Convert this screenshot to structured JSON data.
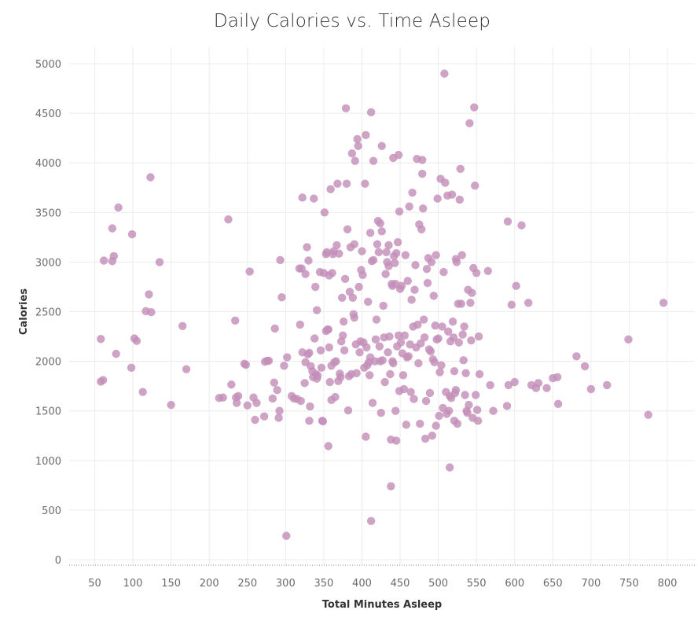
{
  "chart_data": {
    "type": "scatter",
    "title": "Daily Calories vs. Time Asleep",
    "xlabel": "Total Minutes Asleep",
    "ylabel": "Calories",
    "xlim": [
      20,
      860
    ],
    "ylim": [
      -60,
      5200
    ],
    "x_ticks": [
      50,
      100,
      150,
      200,
      250,
      300,
      350,
      400,
      450,
      500,
      550,
      600,
      650,
      700,
      750,
      800
    ],
    "y_ticks": [
      0,
      500,
      1000,
      1500,
      2000,
      2500,
      3000,
      3500,
      4000,
      4500,
      5000
    ],
    "grid": true,
    "legend": "none",
    "marker_color": "#c38fb8",
    "points": [
      [
        58,
        2225
      ],
      [
        58,
        1795
      ],
      [
        61,
        1810
      ],
      [
        62,
        3015
      ],
      [
        73,
        3340
      ],
      [
        73,
        3010
      ],
      [
        75,
        3060
      ],
      [
        78,
        2075
      ],
      [
        81,
        3550
      ],
      [
        98,
        1935
      ],
      [
        99,
        3280
      ],
      [
        102,
        2230
      ],
      [
        105,
        2205
      ],
      [
        113,
        1690
      ],
      [
        117,
        2505
      ],
      [
        121,
        2675
      ],
      [
        123,
        3855
      ],
      [
        124,
        2495
      ],
      [
        135,
        3000
      ],
      [
        150,
        1560
      ],
      [
        165,
        2355
      ],
      [
        170,
        1920
      ],
      [
        213,
        1630
      ],
      [
        218,
        1635
      ],
      [
        225,
        3430
      ],
      [
        229,
        1765
      ],
      [
        234,
        2410
      ],
      [
        235,
        1635
      ],
      [
        236,
        1580
      ],
      [
        238,
        1650
      ],
      [
        246,
        1975
      ],
      [
        248,
        1965
      ],
      [
        250,
        1555
      ],
      [
        253,
        2905
      ],
      [
        258,
        1635
      ],
      [
        260,
        1410
      ],
      [
        262,
        1580
      ],
      [
        272,
        1445
      ],
      [
        273,
        1995
      ],
      [
        276,
        2005
      ],
      [
        278,
        2005
      ],
      [
        283,
        1625
      ],
      [
        285,
        1785
      ],
      [
        286,
        2330
      ],
      [
        289,
        1710
      ],
      [
        291,
        1430
      ],
      [
        292,
        1500
      ],
      [
        293,
        3020
      ],
      [
        295,
        2645
      ],
      [
        298,
        1955
      ],
      [
        301,
        240
      ],
      [
        302,
        2040
      ],
      [
        308,
        1650
      ],
      [
        311,
        1625
      ],
      [
        315,
        1620
      ],
      [
        318,
        2935
      ],
      [
        319,
        2370
      ],
      [
        320,
        1600
      ],
      [
        321,
        2935
      ],
      [
        322,
        2090
      ],
      [
        322,
        3650
      ],
      [
        325,
        1780
      ],
      [
        326,
        2880
      ],
      [
        326,
        1990
      ],
      [
        328,
        3150
      ],
      [
        329,
        2070
      ],
      [
        330,
        3015
      ],
      [
        331,
        2085
      ],
      [
        331,
        1400
      ],
      [
        332,
        1545
      ],
      [
        333,
        1950
      ],
      [
        335,
        1900
      ],
      [
        336,
        1840
      ],
      [
        337,
        3640
      ],
      [
        338,
        2230
      ],
      [
        339,
        2750
      ],
      [
        340,
        1870
      ],
      [
        341,
        1825
      ],
      [
        341,
        2515
      ],
      [
        342,
        1855
      ],
      [
        345,
        2900
      ],
      [
        346,
        2110
      ],
      [
        347,
        1935
      ],
      [
        348,
        1400
      ],
      [
        349,
        1395
      ],
      [
        350,
        2890
      ],
      [
        351,
        3500
      ],
      [
        353,
        2305
      ],
      [
        353,
        3080
      ],
      [
        354,
        3100
      ],
      [
        355,
        2320
      ],
      [
        356,
        1145
      ],
      [
        356,
        2320
      ],
      [
        357,
        2140
      ],
      [
        357,
        2865
      ],
      [
        358,
        1790
      ],
      [
        359,
        3735
      ],
      [
        360,
        1955
      ],
      [
        360,
        1610
      ],
      [
        361,
        2890
      ],
      [
        362,
        3080
      ],
      [
        363,
        3110
      ],
      [
        364,
        1990
      ],
      [
        365,
        1640
      ],
      [
        366,
        2000
      ],
      [
        367,
        3170
      ],
      [
        368,
        3790
      ],
      [
        369,
        1800
      ],
      [
        370,
        3085
      ],
      [
        371,
        1875
      ],
      [
        372,
        1840
      ],
      [
        373,
        2200
      ],
      [
        374,
        2640
      ],
      [
        375,
        2260
      ],
      [
        376,
        2400
      ],
      [
        377,
        2110
      ],
      [
        378,
        2830
      ],
      [
        379,
        4550
      ],
      [
        380,
        3790
      ],
      [
        381,
        3330
      ],
      [
        382,
        1505
      ],
      [
        383,
        1850
      ],
      [
        384,
        2700
      ],
      [
        385,
        3150
      ],
      [
        386,
        1870
      ],
      [
        387,
        4095
      ],
      [
        388,
        2640
      ],
      [
        389,
        2475
      ],
      [
        390,
        2440
      ],
      [
        390,
        3180
      ],
      [
        391,
        4020
      ],
      [
        392,
        2170
      ],
      [
        393,
        1880
      ],
      [
        394,
        4240
      ],
      [
        395,
        4170
      ],
      [
        396,
        2750
      ],
      [
        397,
        2090
      ],
      [
        398,
        2200
      ],
      [
        399,
        2920
      ],
      [
        400,
        3110
      ],
      [
        401,
        2870
      ],
      [
        402,
        2190
      ],
      [
        403,
        1935
      ],
      [
        404,
        3790
      ],
      [
        405,
        1240
      ],
      [
        405,
        4280
      ],
      [
        406,
        2140
      ],
      [
        407,
        1960
      ],
      [
        408,
        2600
      ],
      [
        409,
        1990
      ],
      [
        410,
        1860
      ],
      [
        411,
        3295
      ],
      [
        411,
        2040
      ],
      [
        412,
        390
      ],
      [
        412,
        4510
      ],
      [
        413,
        3010
      ],
      [
        414,
        1580
      ],
      [
        415,
        3020
      ],
      [
        415,
        4020
      ],
      [
        417,
        2000
      ],
      [
        418,
        2220
      ],
      [
        419,
        2420
      ],
      [
        420,
        3180
      ],
      [
        421,
        3415
      ],
      [
        422,
        3100
      ],
      [
        423,
        2150
      ],
      [
        424,
        3390
      ],
      [
        424,
        2000
      ],
      [
        425,
        1480
      ],
      [
        426,
        3310
      ],
      [
        426,
        4170
      ],
      [
        427,
        2010
      ],
      [
        428,
        2560
      ],
      [
        429,
        2240
      ],
      [
        430,
        1790
      ],
      [
        431,
        2880
      ],
      [
        432,
        3100
      ],
      [
        433,
        3000
      ],
      [
        434,
        2090
      ],
      [
        435,
        2960
      ],
      [
        435,
        3170
      ],
      [
        436,
        2250
      ],
      [
        437,
        1870
      ],
      [
        438,
        1210
      ],
      [
        438,
        740
      ],
      [
        439,
        2780
      ],
      [
        440,
        2000
      ],
      [
        440,
        2760
      ],
      [
        441,
        1980
      ],
      [
        441,
        4050
      ],
      [
        442,
        3060
      ],
      [
        443,
        2990
      ],
      [
        444,
        1500
      ],
      [
        444,
        2780
      ],
      [
        445,
        1200
      ],
      [
        445,
        3090
      ],
      [
        446,
        2150
      ],
      [
        447,
        3200
      ],
      [
        448,
        2260
      ],
      [
        448,
        4080
      ],
      [
        449,
        1700
      ],
      [
        449,
        3510
      ],
      [
        450,
        2730
      ],
      [
        451,
        2190
      ],
      [
        452,
        2760
      ],
      [
        453,
        2080
      ],
      [
        454,
        1860
      ],
      [
        455,
        1720
      ],
      [
        456,
        2260
      ],
      [
        457,
        3070
      ],
      [
        458,
        1360
      ],
      [
        459,
        2040
      ],
      [
        460,
        2810
      ],
      [
        461,
        2050
      ],
      [
        462,
        3560
      ],
      [
        463,
        2170
      ],
      [
        464,
        1690
      ],
      [
        465,
        2620
      ],
      [
        466,
        3700
      ],
      [
        467,
        2350
      ],
      [
        468,
        1620
      ],
      [
        469,
        2720
      ],
      [
        470,
        2970
      ],
      [
        471,
        2140
      ],
      [
        472,
        4040
      ],
      [
        473,
        2370
      ],
      [
        474,
        1980
      ],
      [
        475,
        3380
      ],
      [
        476,
        1370
      ],
      [
        477,
        2180
      ],
      [
        478,
        3330
      ],
      [
        479,
        3890
      ],
      [
        479,
        4030
      ],
      [
        480,
        3540
      ],
      [
        481,
        2420
      ],
      [
        482,
        2240
      ],
      [
        483,
        1220
      ],
      [
        484,
        1600
      ],
      [
        485,
        2930
      ],
      [
        486,
        2790
      ],
      [
        487,
        3040
      ],
      [
        488,
        2120
      ],
      [
        489,
        1680
      ],
      [
        490,
        2100
      ],
      [
        491,
        3000
      ],
      [
        492,
        1250
      ],
      [
        493,
        2020
      ],
      [
        494,
        2660
      ],
      [
        495,
        1990
      ],
      [
        496,
        2360
      ],
      [
        497,
        1350
      ],
      [
        497,
        3070
      ],
      [
        498,
        2220
      ],
      [
        499,
        3640
      ],
      [
        500,
        2230
      ],
      [
        501,
        1450
      ],
      [
        502,
        1890
      ],
      [
        503,
        3840
      ],
      [
        504,
        1960
      ],
      [
        505,
        2350
      ],
      [
        506,
        1530
      ],
      [
        507,
        2900
      ],
      [
        508,
        4900
      ],
      [
        509,
        3800
      ],
      [
        510,
        1690
      ],
      [
        511,
        1470
      ],
      [
        512,
        3670
      ],
      [
        513,
        2300
      ],
      [
        514,
        1500
      ],
      [
        515,
        930
      ],
      [
        515,
        1650
      ],
      [
        516,
        2200
      ],
      [
        517,
        1630
      ],
      [
        518,
        3680
      ],
      [
        519,
        2400
      ],
      [
        520,
        2240
      ],
      [
        521,
        1900
      ],
      [
        521,
        1400
      ],
      [
        522,
        1680
      ],
      [
        523,
        1710
      ],
      [
        523,
        3030
      ],
      [
        524,
        3000
      ],
      [
        525,
        1370
      ],
      [
        526,
        2580
      ],
      [
        527,
        2190
      ],
      [
        528,
        3630
      ],
      [
        529,
        3940
      ],
      [
        530,
        2580
      ],
      [
        531,
        3070
      ],
      [
        532,
        2270
      ],
      [
        533,
        2010
      ],
      [
        534,
        2350
      ],
      [
        535,
        1660
      ],
      [
        536,
        1880
      ],
      [
        537,
        1500
      ],
      [
        538,
        1480
      ],
      [
        539,
        2720
      ],
      [
        540,
        1560
      ],
      [
        541,
        4400
      ],
      [
        542,
        2590
      ],
      [
        543,
        2210
      ],
      [
        544,
        2690
      ],
      [
        545,
        1430
      ],
      [
        546,
        2940
      ],
      [
        547,
        4560
      ],
      [
        548,
        3770
      ],
      [
        549,
        1660
      ],
      [
        550,
        2890
      ],
      [
        551,
        1510
      ],
      [
        552,
        1400
      ],
      [
        553,
        2250
      ],
      [
        554,
        1870
      ],
      [
        565,
        2910
      ],
      [
        568,
        1760
      ],
      [
        572,
        1500
      ],
      [
        590,
        1550
      ],
      [
        591,
        3410
      ],
      [
        592,
        1760
      ],
      [
        596,
        2570
      ],
      [
        600,
        1790
      ],
      [
        602,
        2760
      ],
      [
        609,
        3370
      ],
      [
        618,
        2590
      ],
      [
        622,
        1760
      ],
      [
        628,
        1730
      ],
      [
        631,
        1780
      ],
      [
        642,
        1730
      ],
      [
        650,
        1830
      ],
      [
        656,
        1840
      ],
      [
        657,
        1570
      ],
      [
        681,
        2050
      ],
      [
        692,
        1950
      ],
      [
        700,
        1720
      ],
      [
        721,
        1760
      ],
      [
        749,
        2220
      ],
      [
        775,
        1460
      ],
      [
        795,
        2590
      ]
    ]
  }
}
